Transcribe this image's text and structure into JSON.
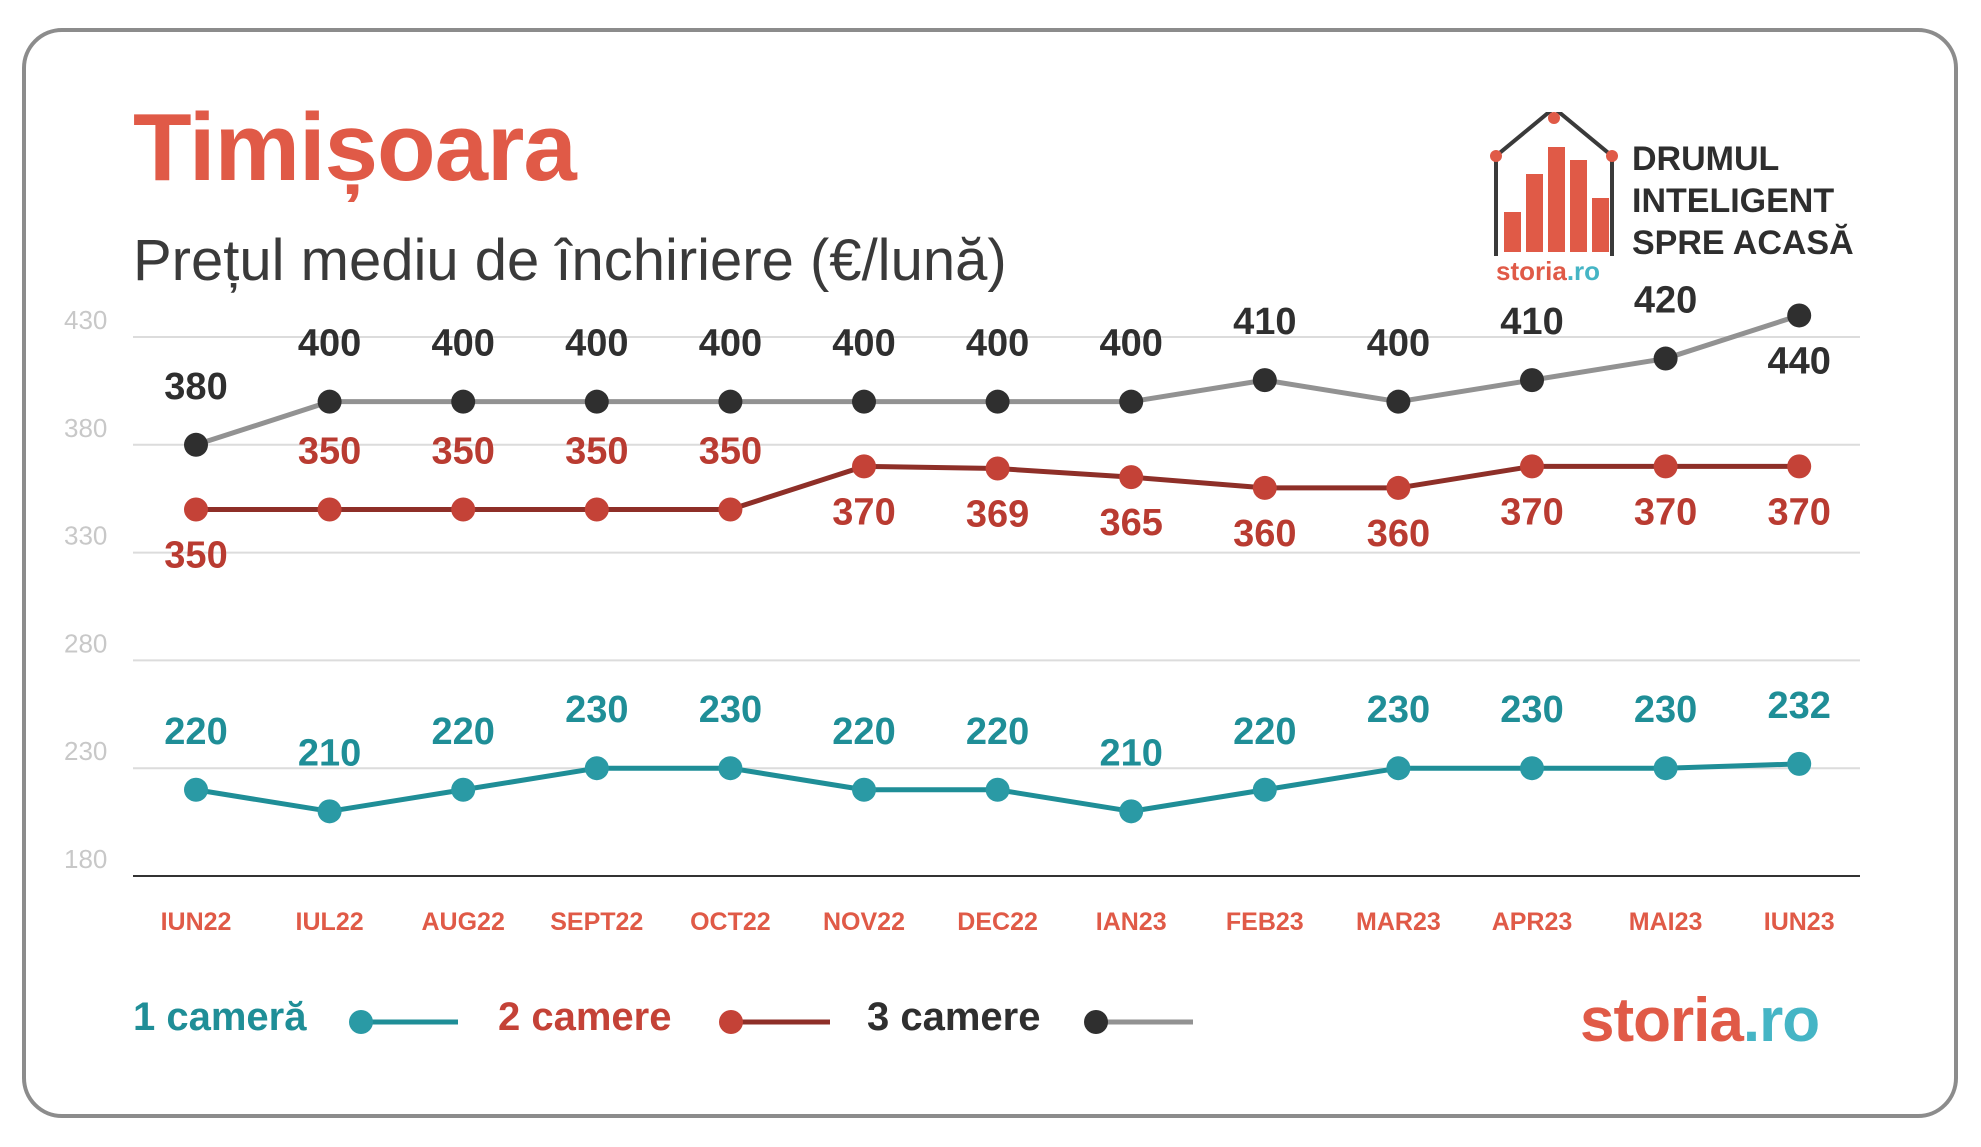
{
  "header": {
    "title": "Timișoara",
    "subtitle": "Prețul mediu de închiriere (€/lună)"
  },
  "brand": {
    "tagline": [
      "DRUMUL",
      "INTELIGENT",
      "SPRE ACASĂ"
    ],
    "logo_part1": "storia",
    "logo_part2": ".ro"
  },
  "legend": {
    "s1": "1 cameră",
    "s2": "2 camere",
    "s3": "3 camere"
  },
  "colors": {
    "title": "#e05a47",
    "s1_line": "#1f8e97",
    "s1_marker": "#2a9aa5",
    "s1_label": "#1f8e97",
    "s2_line": "#8e2f28",
    "s2_marker": "#c44237",
    "s2_label": "#b93b31",
    "s3_line": "#929292",
    "s3_marker": "#2f2f2f",
    "s3_label": "#2f2f2f",
    "xtick": "#e05a47",
    "ytick": "#c8c8c8",
    "grid": "#dcdcdc",
    "axis": "#333333"
  },
  "chart_data": {
    "type": "line",
    "categories": [
      "IUN22",
      "IUL22",
      "AUG22",
      "SEPT22",
      "OCT22",
      "NOV22",
      "DEC22",
      "IAN23",
      "FEB23",
      "MAR23",
      "APR23",
      "MAI23",
      "IUN23"
    ],
    "series": [
      {
        "name": "1 cameră",
        "values": [
          220,
          210,
          220,
          230,
          230,
          220,
          220,
          210,
          220,
          230,
          230,
          230,
          232
        ]
      },
      {
        "name": "2 camere",
        "values": [
          350,
          350,
          350,
          350,
          350,
          370,
          369,
          365,
          360,
          360,
          370,
          370,
          370
        ]
      },
      {
        "name": "3 camere",
        "values": [
          380,
          400,
          400,
          400,
          400,
          400,
          400,
          400,
          410,
          400,
          410,
          420,
          440
        ]
      }
    ],
    "yticks": [
      180,
      230,
      280,
      330,
      380,
      430
    ],
    "ylim": [
      180,
      430
    ],
    "grid": true,
    "legend_position": "bottom-left",
    "xlabel": "",
    "ylabel": ""
  }
}
